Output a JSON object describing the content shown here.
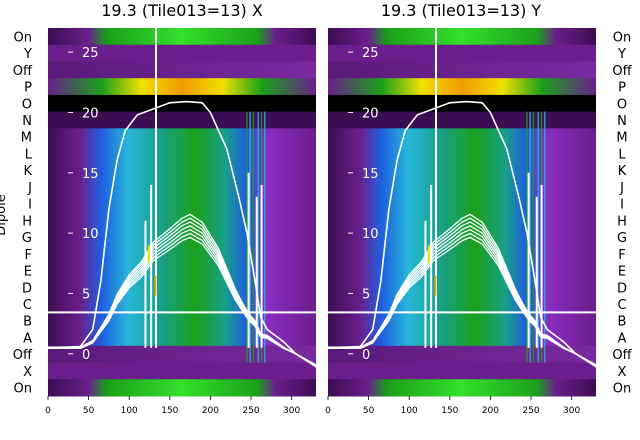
{
  "chart_data": [
    {
      "type": "heatmap",
      "title": "19.3 (Tile013=13) X",
      "ylabel": "Dipole",
      "xlim": [
        0,
        330
      ],
      "x_ticks": [
        0,
        50,
        100,
        150,
        200,
        250,
        300
      ],
      "rows": [
        "On",
        "Y",
        "Off",
        "P",
        "O",
        "N",
        "M",
        "L",
        "K",
        "J",
        "I",
        "H",
        "G",
        "F",
        "E",
        "D",
        "C",
        "B",
        "A",
        "Off",
        "X",
        "On"
      ],
      "overlay_ylim": [
        -3.5,
        27
      ],
      "overlay_ticks": [
        0,
        5,
        10,
        15,
        20,
        25
      ],
      "baseline_row_boundary": "B/C",
      "envelope": {
        "x": [
          0,
          40,
          55,
          65,
          75,
          85,
          95,
          110,
          150,
          170,
          190,
          200,
          220,
          235,
          245,
          255,
          262,
          270,
          290,
          305,
          330
        ],
        "y": [
          0.5,
          0.6,
          2,
          6,
          12,
          16,
          18.5,
          19.8,
          20.8,
          20.9,
          20.8,
          20,
          17,
          13,
          10,
          6,
          3,
          2,
          1,
          0,
          -1
        ]
      },
      "beam_curve": {
        "x": [
          0,
          40,
          55,
          65,
          75,
          85,
          100,
          115,
          130,
          150,
          165,
          175,
          190,
          210,
          230,
          240,
          248,
          255,
          262,
          270,
          290,
          305,
          330
        ],
        "y": [
          0.5,
          0.5,
          1,
          2,
          3,
          4.5,
          6,
          7,
          8.5,
          9.5,
          10.3,
          10.6,
          10,
          8,
          5,
          3.8,
          3,
          2.5,
          1.5,
          1.4,
          0.5,
          0,
          -1
        ]
      },
      "spikes": [
        {
          "x": 133,
          "y": 28
        },
        {
          "x": 127,
          "y": 14
        },
        {
          "x": 120,
          "y": 11
        },
        {
          "x": 247,
          "y": 15
        },
        {
          "x": 257,
          "y": 13
        },
        {
          "x": 263,
          "y": 14
        }
      ]
    },
    {
      "type": "heatmap",
      "title": "19.3 (Tile013=13) Y",
      "ylabel": "",
      "xlim": [
        0,
        330
      ],
      "x_ticks": [
        0,
        50,
        100,
        150,
        200,
        250,
        300
      ],
      "rows": [
        "On",
        "Y",
        "Off",
        "P",
        "O",
        "N",
        "M",
        "L",
        "K",
        "J",
        "I",
        "H",
        "G",
        "F",
        "E",
        "D",
        "C",
        "B",
        "A",
        "Off",
        "X",
        "On"
      ],
      "overlay_ylim": [
        -3.5,
        27
      ],
      "overlay_ticks": [
        0,
        5,
        10,
        15,
        20,
        25
      ],
      "baseline_row_boundary": "B/C",
      "envelope": {
        "x": [
          0,
          40,
          55,
          65,
          75,
          85,
          95,
          110,
          150,
          170,
          190,
          200,
          220,
          235,
          245,
          255,
          262,
          270,
          290,
          305,
          330
        ],
        "y": [
          0.5,
          0.6,
          2,
          6,
          12,
          16,
          18.5,
          19.8,
          20.8,
          20.9,
          20.8,
          20,
          17,
          13,
          10,
          6,
          3,
          2,
          1,
          0,
          -1
        ]
      },
      "beam_curve": {
        "x": [
          0,
          40,
          55,
          65,
          75,
          85,
          100,
          115,
          130,
          150,
          165,
          175,
          190,
          210,
          230,
          240,
          248,
          255,
          262,
          270,
          290,
          305,
          330
        ],
        "y": [
          0.5,
          0.5,
          1,
          2,
          3,
          4.5,
          6,
          7,
          8.5,
          9.5,
          10.3,
          10.6,
          10,
          8,
          5,
          3.8,
          3,
          2.5,
          1.5,
          1.4,
          0.5,
          0,
          -1
        ]
      },
      "spikes": [
        {
          "x": 133,
          "y": 28
        },
        {
          "x": 127,
          "y": 14
        },
        {
          "x": 120,
          "y": 11
        },
        {
          "x": 247,
          "y": 15
        },
        {
          "x": 257,
          "y": 13
        },
        {
          "x": 263,
          "y": 14
        }
      ]
    }
  ],
  "colors": {
    "purple": "#6a1f8c",
    "purple_dark": "#3c0d52",
    "violet": "#8a2bc0",
    "blue_dark": "#0b1f9e",
    "blue": "#1e5fe0",
    "cyan": "#27b7d9",
    "teal": "#18a088",
    "green": "#1aa01a",
    "green_bright": "#35e02a",
    "yellow": "#f0e000",
    "orange": "#f09a00",
    "black": "#000000",
    "line": "#ffffff"
  }
}
